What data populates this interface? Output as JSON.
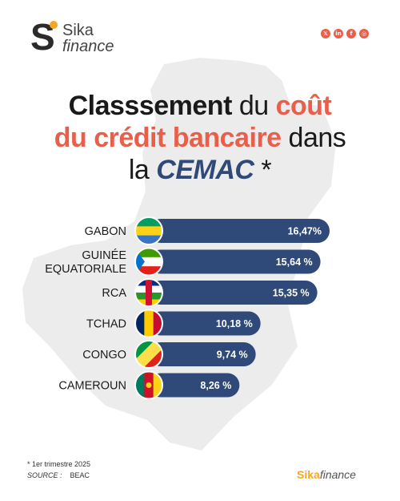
{
  "logo": {
    "s": "S",
    "line1": "Sika",
    "line2": "finance"
  },
  "socials": [
    {
      "icon": "x-icon",
      "glyph": "𝕏"
    },
    {
      "icon": "linkedin-icon",
      "glyph": "in"
    },
    {
      "icon": "facebook-icon",
      "glyph": "f"
    },
    {
      "icon": "instagram-icon",
      "glyph": "◎"
    }
  ],
  "title": {
    "p1": "Classsement",
    "p2": " du ",
    "p3": "coût",
    "p4": "du crédit bancaire",
    "p5": " dans",
    "p6": "la ",
    "p7": "CEMAC",
    "p8": " *"
  },
  "chart_data": {
    "type": "bar",
    "orientation": "horizontal",
    "categories": [
      "GABON",
      "GUINÉE EQUATORIALE",
      "RCA",
      "TCHAD",
      "CONGO",
      "CAMEROUN"
    ],
    "category_lines": [
      [
        "GABON"
      ],
      [
        "GUINÉE",
        "EQUATORIALE"
      ],
      [
        "RCA"
      ],
      [
        "TCHAD"
      ],
      [
        "CONGO"
      ],
      [
        "CAMEROUN"
      ]
    ],
    "values": [
      16.47,
      15.64,
      15.35,
      10.18,
      9.74,
      8.26
    ],
    "value_labels": [
      "16,47%",
      "15,64 %",
      "15,35 %",
      "10,18 %",
      "9,74 %",
      "8,26 %"
    ],
    "flags": [
      "gabon-flag-icon",
      "equatorial-guinea-flag-icon",
      "car-flag-icon",
      "chad-flag-icon",
      "congo-flag-icon",
      "cameroon-flag-icon"
    ],
    "unit": "%",
    "bar_color": "#2f4a78"
  },
  "footnote": "* 1er trimestre 2025",
  "source": {
    "label": "SOURCE :",
    "value": "BEAC"
  },
  "brand": {
    "part1": "Sika",
    "part2": "finance"
  },
  "colors": {
    "accent": "#e8604c",
    "navy": "#2f4a78",
    "logo_dot": "#f5a623"
  }
}
